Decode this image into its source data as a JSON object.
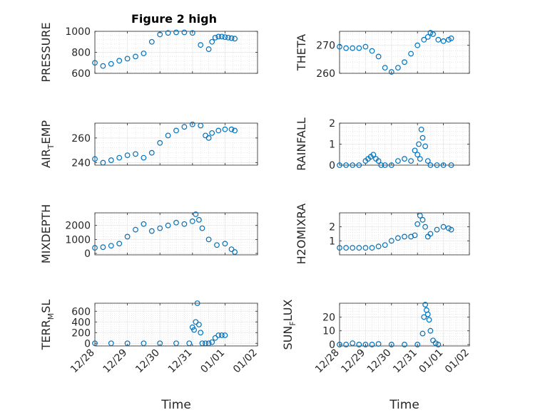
{
  "figure": {
    "title": "Figure 2 high"
  },
  "chart_data": [
    {
      "type": "scatter",
      "id": "pressure",
      "title": "Figure 2 high",
      "ylabel": {
        "main": "PRESSURE",
        "sub": ""
      },
      "xlabel": "",
      "ylim": [
        600,
        1000
      ],
      "yticks": [
        600,
        800,
        1000
      ],
      "ytick_labels": [
        "600",
        "800",
        "1000"
      ],
      "x": [
        0,
        0.25,
        0.5,
        0.75,
        1.0,
        1.25,
        1.5,
        1.75,
        2.0,
        2.25,
        2.5,
        2.75,
        3.0,
        3.25,
        3.5,
        3.6,
        3.7,
        3.8,
        3.9,
        4.0,
        4.1,
        4.2,
        4.3
      ],
      "y": [
        700,
        670,
        690,
        720,
        740,
        760,
        790,
        900,
        970,
        985,
        990,
        990,
        985,
        870,
        830,
        900,
        940,
        950,
        950,
        945,
        940,
        935,
        930
      ]
    },
    {
      "type": "scatter",
      "id": "theta",
      "title": "",
      "ylabel": {
        "main": "THETA",
        "sub": ""
      },
      "xlabel": "",
      "ylim": [
        260,
        275
      ],
      "yticks": [
        260,
        270
      ],
      "ytick_labels": [
        "260",
        "270"
      ],
      "x": [
        0,
        0.25,
        0.5,
        0.75,
        1.0,
        1.25,
        1.5,
        1.75,
        2.0,
        2.25,
        2.5,
        2.75,
        3.0,
        3.25,
        3.4,
        3.5,
        3.6,
        3.8,
        4.0,
        4.2,
        4.3
      ],
      "y": [
        269.5,
        269,
        269,
        269,
        269.5,
        268,
        266,
        262,
        260.5,
        262,
        264,
        267,
        270,
        272,
        273,
        274.5,
        274,
        272,
        271.5,
        272,
        272.5
      ]
    },
    {
      "type": "scatter",
      "id": "air_temp",
      "title": "",
      "ylabel": {
        "main": "AIR",
        "sub": "T",
        "rest": "EMP"
      },
      "xlabel": "",
      "ylim": [
        238,
        272
      ],
      "yticks": [
        240,
        260
      ],
      "ytick_labels": [
        "240",
        "260"
      ],
      "x": [
        0,
        0.25,
        0.5,
        0.75,
        1.0,
        1.25,
        1.5,
        1.75,
        2.0,
        2.25,
        2.5,
        2.75,
        3.0,
        3.25,
        3.4,
        3.5,
        3.6,
        3.8,
        4.0,
        4.2,
        4.3
      ],
      "y": [
        243,
        240,
        242,
        244,
        246,
        247,
        244,
        248,
        256,
        262,
        266,
        269,
        271,
        270,
        262,
        260,
        264,
        266,
        267,
        267,
        266
      ]
    },
    {
      "type": "scatter",
      "id": "rainfall",
      "title": "",
      "ylabel": {
        "main": "RAINFALL",
        "sub": ""
      },
      "xlabel": "",
      "ylim": [
        0,
        2
      ],
      "yticks": [
        0,
        1,
        2
      ],
      "ytick_labels": [
        "0",
        "1",
        "2"
      ],
      "x": [
        0,
        0.25,
        0.5,
        0.75,
        1.0,
        1.1,
        1.2,
        1.3,
        1.4,
        1.5,
        1.6,
        1.75,
        2.0,
        2.25,
        2.5,
        2.75,
        2.9,
        3.0,
        3.05,
        3.1,
        3.15,
        3.2,
        3.3,
        3.4,
        3.5,
        3.75,
        4.0,
        4.3
      ],
      "y": [
        0,
        0,
        0,
        0,
        0.2,
        0.3,
        0.4,
        0.5,
        0.3,
        0.2,
        0,
        0,
        0,
        0.2,
        0.3,
        0.2,
        0.7,
        0.5,
        1.0,
        0.3,
        1.7,
        1.3,
        0.9,
        0.2,
        0,
        0,
        0,
        0
      ]
    },
    {
      "type": "scatter",
      "id": "mixdepth",
      "title": "",
      "ylabel": {
        "main": "MIXDEPTH",
        "sub": ""
      },
      "xlabel": "",
      "ylim": [
        -100,
        2900
      ],
      "yticks": [
        0,
        1000,
        2000
      ],
      "ytick_labels": [
        "0",
        "1000",
        "2000"
      ],
      "x": [
        0,
        0.25,
        0.5,
        0.75,
        1.0,
        1.25,
        1.5,
        1.75,
        2.0,
        2.25,
        2.5,
        2.75,
        3.0,
        3.1,
        3.2,
        3.3,
        3.5,
        3.75,
        4.0,
        4.2,
        4.3
      ],
      "y": [
        400,
        450,
        550,
        700,
        1200,
        1700,
        2100,
        1600,
        1800,
        2000,
        2200,
        2100,
        2300,
        2800,
        2400,
        1800,
        1000,
        600,
        700,
        300,
        100
      ]
    },
    {
      "type": "scatter",
      "id": "h2omixra",
      "title": "",
      "ylabel": {
        "main": "H2OMIXRA",
        "sub": ""
      },
      "xlabel": "",
      "ylim": [
        0,
        3
      ],
      "yticks": [
        1,
        2
      ],
      "ytick_labels": [
        "1",
        "2"
      ],
      "x": [
        0,
        0.25,
        0.5,
        0.75,
        1.0,
        1.25,
        1.5,
        1.75,
        2.0,
        2.25,
        2.5,
        2.75,
        2.9,
        3.0,
        3.1,
        3.2,
        3.3,
        3.4,
        3.5,
        3.75,
        4.0,
        4.2,
        4.3
      ],
      "y": [
        0.5,
        0.5,
        0.5,
        0.5,
        0.5,
        0.5,
        0.6,
        0.7,
        1.0,
        1.2,
        1.3,
        1.3,
        1.4,
        2.2,
        2.8,
        2.5,
        2.0,
        1.3,
        1.5,
        1.8,
        2.0,
        1.9,
        1.8
      ]
    },
    {
      "type": "scatter",
      "id": "terr_msl",
      "title": "",
      "ylabel": {
        "main": "TERR",
        "sub": "M",
        "rest": "SL"
      },
      "xlabel": "Time",
      "ylim": [
        -50,
        750
      ],
      "yticks": [
        0,
        200,
        400,
        600
      ],
      "ytick_labels": [
        "0",
        "200",
        "400",
        "600"
      ],
      "x": [
        0,
        0.5,
        1.0,
        1.5,
        2.0,
        2.5,
        2.9,
        3.0,
        3.05,
        3.1,
        3.15,
        3.2,
        3.25,
        3.3,
        3.4,
        3.5,
        3.6,
        3.7,
        3.8,
        3.9,
        4.0
      ],
      "y": [
        0,
        0,
        0,
        0,
        0,
        0,
        0,
        300,
        250,
        400,
        750,
        350,
        200,
        0,
        0,
        0,
        20,
        100,
        150,
        150,
        150
      ]
    },
    {
      "type": "scatter",
      "id": "sun_flux",
      "title": "",
      "ylabel": {
        "main": "SUN",
        "sub": "F",
        "rest": "LUX"
      },
      "xlabel": "Time",
      "ylim": [
        -1,
        30
      ],
      "yticks": [
        0,
        10,
        20
      ],
      "ytick_labels": [
        "0",
        "10",
        "20"
      ],
      "x": [
        0,
        0.25,
        0.5,
        0.75,
        1.0,
        1.25,
        1.5,
        2.0,
        2.5,
        3.0,
        3.2,
        3.25,
        3.3,
        3.35,
        3.4,
        3.45,
        3.5,
        3.6,
        3.7,
        3.8
      ],
      "y": [
        0,
        0,
        1,
        0,
        0,
        0,
        0.5,
        0,
        0,
        0,
        8,
        20,
        29,
        25,
        22,
        18,
        10,
        3,
        1,
        0
      ]
    }
  ],
  "x_axis": {
    "range": [
      0,
      5
    ],
    "tick_values": [
      0,
      1,
      2,
      3,
      4,
      5
    ],
    "tick_labels": [
      "12/28",
      "12/29",
      "12/30",
      "12/31",
      "01/01",
      "01/02"
    ]
  },
  "colors": {
    "marker": "#0072BD",
    "grid": "#ebebeb",
    "axis": "#262626"
  }
}
